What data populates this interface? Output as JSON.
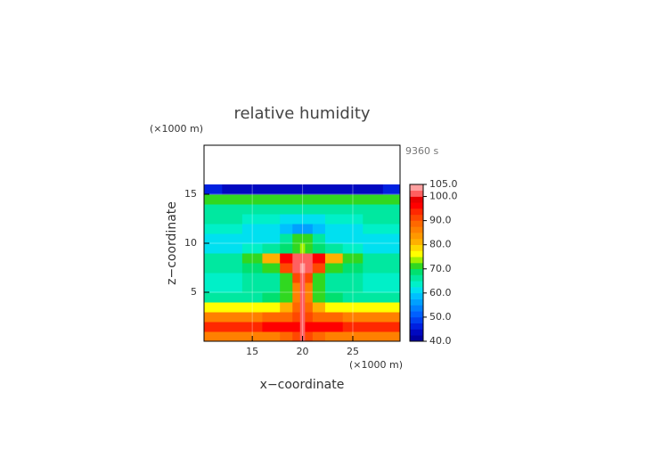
{
  "chart_data": {
    "type": "heatmap",
    "title": "relative humidity",
    "x_unit": "(×1000 m)",
    "y_unit": "(×1000 m)",
    "time_label": "9360 s",
    "xlabel": "x−coordinate",
    "ylabel": "z−coordinate",
    "xlim": [
      10.2,
      29.7
    ],
    "ylim": [
      0,
      20
    ],
    "xticks": [
      15,
      20,
      25
    ],
    "yticks": [
      5,
      10,
      15
    ],
    "grid": true,
    "x": [
      11,
      13,
      15,
      17,
      18.5,
      19.5,
      20,
      20.5,
      21.5,
      23,
      25,
      27,
      29
    ],
    "y": [
      0.5,
      1.5,
      2.5,
      3.5,
      4.5,
      5.5,
      6.5,
      7.5,
      8.5,
      9.5,
      10.5,
      11.5,
      12.5,
      13.5,
      14.5,
      15.5
    ],
    "z": [
      [
        85,
        85,
        86,
        87,
        88,
        92,
        100,
        92,
        88,
        87,
        86,
        85,
        85
      ],
      [
        93,
        93,
        94,
        95,
        96,
        97,
        102,
        97,
        96,
        95,
        94,
        93,
        93
      ],
      [
        86,
        86,
        87,
        88,
        89,
        92,
        100,
        92,
        89,
        88,
        87,
        86,
        86
      ],
      [
        75,
        75,
        76,
        77,
        80,
        88,
        100,
        88,
        80,
        77,
        76,
        75,
        75
      ],
      [
        66,
        66,
        67,
        68,
        72,
        85,
        101,
        85,
        72,
        68,
        67,
        66,
        66
      ],
      [
        64,
        64,
        65,
        66,
        70,
        85,
        101,
        85,
        70,
        66,
        65,
        64,
        64
      ],
      [
        64,
        64,
        65,
        66,
        72,
        90,
        102,
        90,
        72,
        66,
        65,
        64,
        64
      ],
      [
        66,
        67,
        68,
        72,
        90,
        101,
        103,
        101,
        92,
        72,
        68,
        67,
        66
      ],
      [
        66,
        67,
        70,
        80,
        95,
        101,
        101,
        101,
        95,
        80,
        70,
        67,
        66
      ],
      [
        62,
        62,
        63,
        65,
        68,
        72,
        74,
        72,
        68,
        65,
        63,
        62,
        62
      ],
      [
        60,
        60,
        61,
        62,
        66,
        70,
        72,
        70,
        66,
        62,
        61,
        60,
        60
      ],
      [
        63,
        63,
        62,
        60,
        58,
        57,
        57,
        57,
        58,
        60,
        62,
        63,
        63
      ],
      [
        66,
        65,
        64,
        63,
        62,
        62,
        62,
        62,
        62,
        63,
        64,
        65,
        66
      ],
      [
        67,
        67,
        67,
        66,
        66,
        66,
        66,
        66,
        66,
        66,
        67,
        67,
        67
      ],
      [
        70,
        70,
        71,
        72,
        72,
        72,
        72,
        72,
        72,
        72,
        71,
        70,
        70
      ],
      [
        45,
        44,
        43,
        43,
        43,
        43,
        43,
        43,
        43,
        43,
        43,
        44,
        45
      ]
    ],
    "clim": [
      40,
      105
    ],
    "colors": [
      "#0000a0",
      "#0008c0",
      "#0020e0",
      "#0040f0",
      "#0060ff",
      "#0080ff",
      "#00a0ff",
      "#00c0ff",
      "#00e0f0",
      "#00f0c8",
      "#00e8a0",
      "#00e070",
      "#30d820",
      "#a0f000",
      "#ffff00",
      "#ffd800",
      "#ffb000",
      "#ff9800",
      "#ff8000",
      "#ff6800",
      "#ff4800",
      "#ff2800",
      "#ff0000",
      "#e80000",
      "#ff6060",
      "#ffa0a0"
    ],
    "cticks": [
      {
        "value": 40,
        "label": "40.0"
      },
      {
        "value": 50,
        "label": "50.0"
      },
      {
        "value": 60,
        "label": "60.0"
      },
      {
        "value": 70,
        "label": "70.0"
      },
      {
        "value": 80,
        "label": "80.0"
      },
      {
        "value": 90,
        "label": "90.0"
      },
      {
        "value": 100,
        "label": "100.0"
      },
      {
        "value": 105,
        "label": "105.0"
      }
    ]
  }
}
